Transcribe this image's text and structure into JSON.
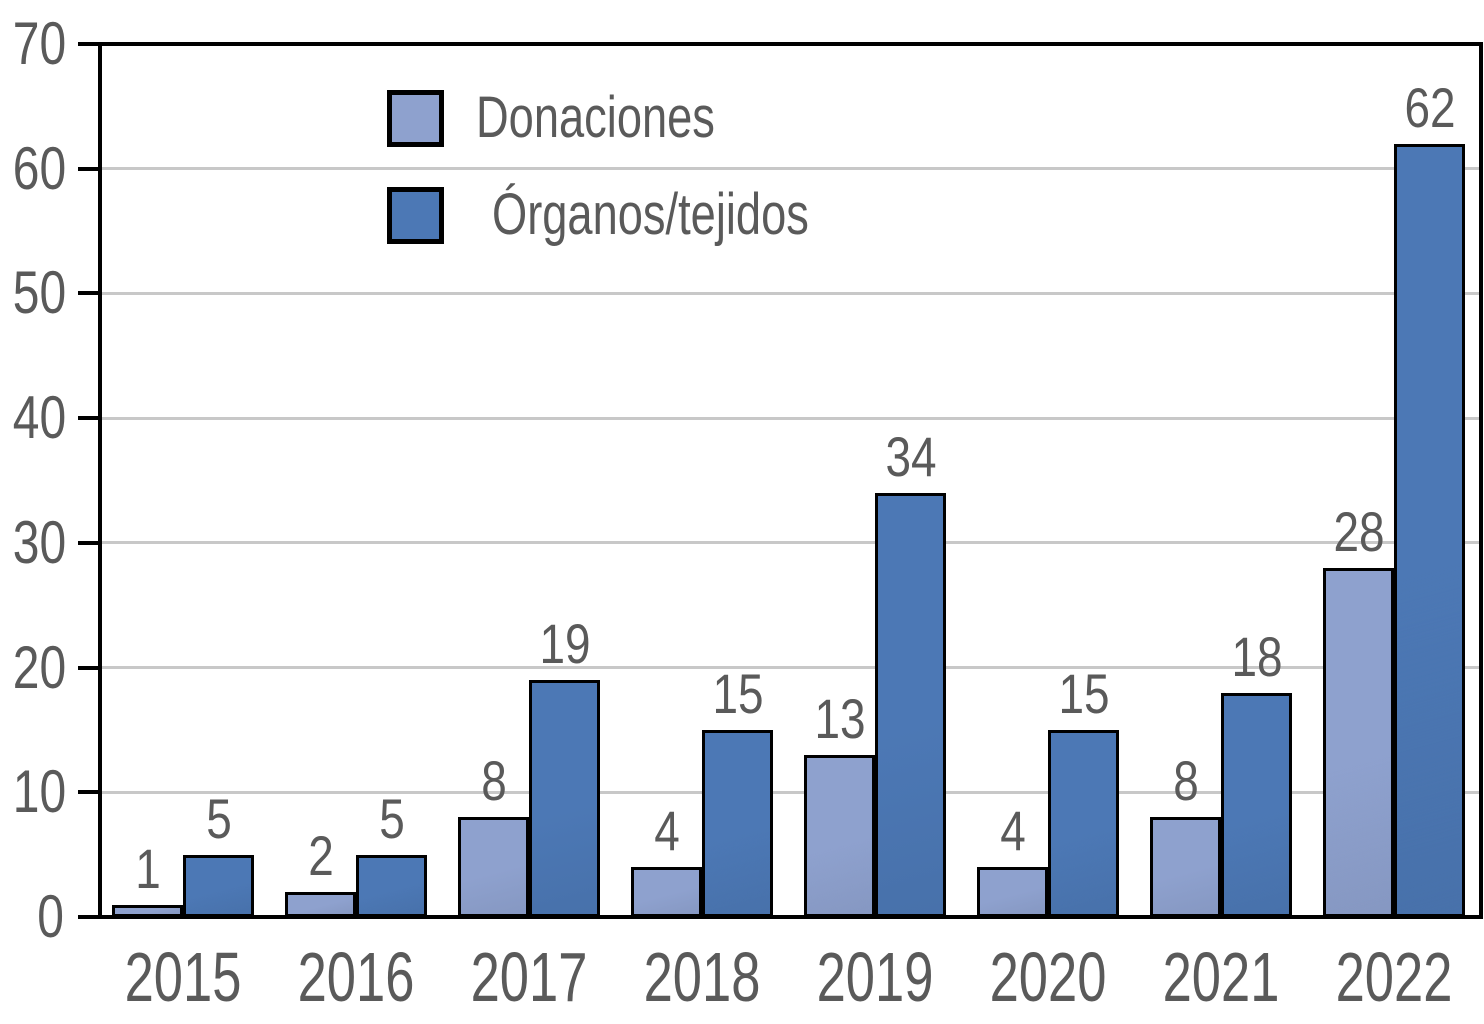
{
  "chart_data": {
    "type": "bar",
    "categories": [
      "2015",
      "2016",
      "2017",
      "2018",
      "2019",
      "2020",
      "2021",
      "2022"
    ],
    "series": [
      {
        "name": "Donaciones",
        "color": "#8ea1ce",
        "values": [
          1,
          2,
          8,
          4,
          13,
          4,
          8,
          28
        ]
      },
      {
        "name": "Órganos/tejidos",
        "color": "#4c78b5",
        "values": [
          5,
          5,
          19,
          15,
          34,
          15,
          18,
          62
        ]
      }
    ],
    "title": "",
    "xlabel": "",
    "ylabel": "",
    "ylim": [
      0,
      70
    ],
    "ytick_step": 10,
    "yticks": [
      "0",
      "10",
      "20",
      "30",
      "40",
      "50",
      "60",
      "70"
    ],
    "grid": true,
    "value_labels": true,
    "legend_position": "top-left-inside",
    "colors": {
      "grid": "#c8c8c8",
      "axis": "#000000",
      "bar_outline": "#000000",
      "text": "#5a5a5a"
    }
  }
}
